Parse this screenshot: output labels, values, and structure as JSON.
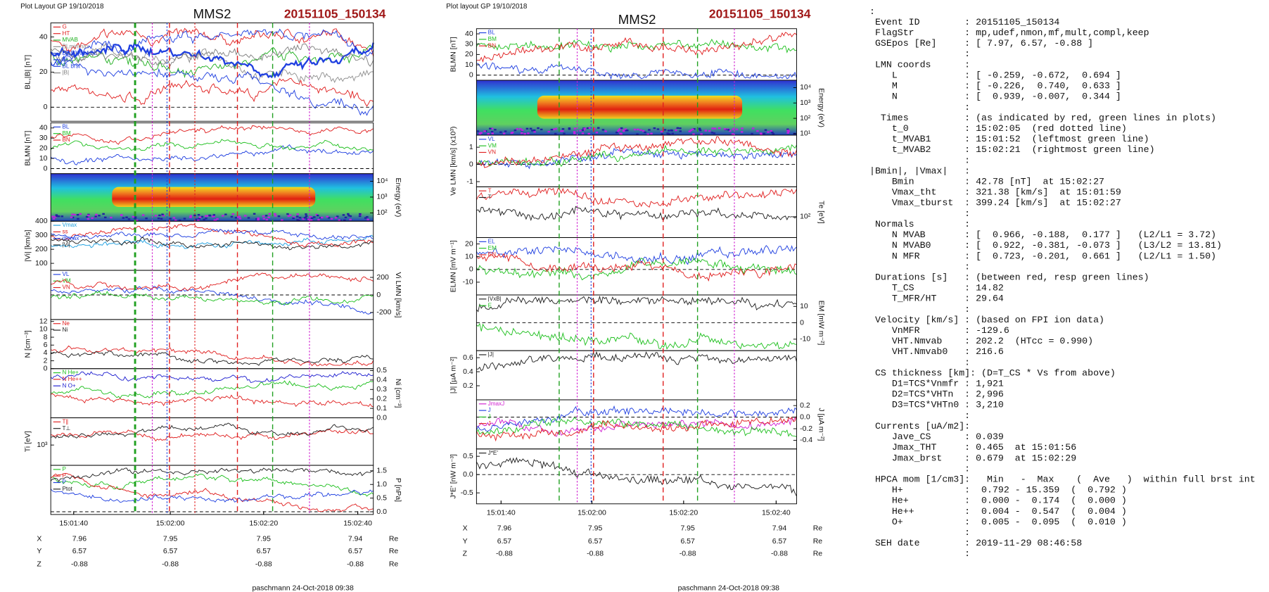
{
  "plots": [
    {
      "header": "Plot Layout GP 19/10/2018",
      "probe": "MMS2",
      "event": "20151105_150134",
      "footer": "paschmann 24-Oct-2018 09:38",
      "xticks": [
        "15:01:40",
        "15:02:00",
        "15:02:20",
        "15:02:40"
      ],
      "position_rows": [
        {
          "label": "X",
          "values": [
            7.96,
            7.95,
            7.95,
            7.94
          ],
          "unit": "Re"
        },
        {
          "label": "Y",
          "values": [
            6.57,
            6.57,
            6.57,
            6.57
          ],
          "unit": "Re"
        },
        {
          "label": "Z",
          "values": [
            -0.88,
            -0.88,
            -0.88,
            -0.88
          ],
          "unit": "Re"
        }
      ],
      "panels": [
        {
          "kind": "line",
          "axis": "left",
          "ylabel": "BL,|B| [nT]",
          "ylim": [
            -8,
            48
          ],
          "yticks": [
            0,
            20,
            40
          ],
          "legend": [
            {
              "name": "G",
              "color": "#e02020"
            },
            {
              "name": "HT",
              "color": "#e02020"
            },
            {
              "name": "MVAB",
              "color": "#20b020"
            },
            {
              "name": "BLminmax",
              "color": "#909090"
            },
            {
              "name": "BL 50% of BL",
              "color": "#2040e0"
            },
            {
              "name": "BL",
              "color": "#2040e0"
            },
            {
              "name": "BL brst",
              "color": "#2040e0"
            },
            {
              "name": "|B|",
              "color": "#808080"
            }
          ]
        },
        {
          "kind": "line",
          "axis": "left",
          "ylabel": "BLMN [nT]",
          "ylim": [
            -5,
            45
          ],
          "yticks": [
            0,
            10,
            20,
            30,
            40
          ],
          "legend": [
            {
              "name": "BL",
              "color": "#2040e0"
            },
            {
              "name": "BM",
              "color": "#20c020"
            },
            {
              "name": "BN",
              "color": "#e02020"
            }
          ]
        },
        {
          "kind": "spectrogram",
          "axis": "right",
          "ylabel": "Energy (eV)",
          "log": true,
          "ylim": [
            30,
            30000
          ],
          "yticks": [
            {
              "value": 100,
              "label": "10²"
            },
            {
              "value": 1000,
              "label": "10³"
            },
            {
              "value": 10000,
              "label": "10⁴"
            }
          ],
          "legend": []
        },
        {
          "kind": "line",
          "axis": "left",
          "ylabel": "|Vi| [km/s]",
          "ylim": [
            50,
            400
          ],
          "yticks": [
            100,
            200,
            300,
            400
          ],
          "legend": [
            {
              "name": "Vmax",
              "color": "#20a0e0"
            },
            {
              "name": "ss",
              "color": "#e02020"
            },
            {
              "name": "dvmax",
              "color": "#2040e0"
            },
            {
              "name": "|Vi|",
              "color": "#202020"
            }
          ]
        },
        {
          "kind": "line",
          "axis": "right",
          "ylabel": "Vi LMN [km/s]",
          "ylim": [
            -280,
            280
          ],
          "yticks": [
            -200,
            0,
            200
          ],
          "legend": [
            {
              "name": "VL",
              "color": "#2040e0"
            },
            {
              "name": "VM",
              "color": "#20c020"
            },
            {
              "name": "VN",
              "color": "#e02020"
            }
          ]
        },
        {
          "kind": "line",
          "axis": "left",
          "ylabel": "N [cm⁻³]",
          "ylim": [
            0,
            12.5
          ],
          "yticks": [
            0,
            2,
            4,
            6,
            8,
            10,
            12
          ],
          "legend": [
            {
              "name": "Ne",
              "color": "#e02020"
            },
            {
              "name": "Ni",
              "color": "#202020"
            }
          ]
        },
        {
          "kind": "line",
          "axis": "right",
          "ylabel": "Ni [cm⁻³]",
          "ylim": [
            0,
            0.52
          ],
          "yticks": [
            {
              "value": 0,
              "label": "0.0"
            },
            0.1,
            0.2,
            0.3,
            0.4,
            0.5
          ],
          "legend": [
            {
              "name": "N He+",
              "color": "#20c020"
            },
            {
              "name": "N He++",
              "color": "#e02020"
            },
            {
              "name": "N O+",
              "color": "#2020d0"
            }
          ]
        },
        {
          "kind": "line",
          "axis": "left",
          "ylabel": "Ti [eV]",
          "log": true,
          "ylim": [
            300,
            5000
          ],
          "yticks": [
            {
              "value": 1000,
              "label": "10³"
            }
          ],
          "legend": [
            {
              "name": "T∥",
              "color": "#e02020"
            },
            {
              "name": "T⊥",
              "color": "#202020"
            }
          ]
        },
        {
          "kind": "line",
          "axis": "right",
          "ylabel": "P [nPa]",
          "ylim": [
            -0.1,
            1.7
          ],
          "yticks": [
            {
              "value": 0,
              "label": "0.0"
            },
            0.5,
            {
              "value": 1,
              "label": "1.0"
            },
            1.5
          ],
          "legend": [
            {
              "name": "P",
              "color": "#20c020"
            },
            {
              "name": "P",
              "color": "#e02020"
            },
            {
              "name": "P",
              "color": "#2040e0"
            },
            {
              "name": "Ptot",
              "color": "#202020"
            }
          ]
        }
      ]
    },
    {
      "header": "Plot layout GP 19/10/2018",
      "probe": "MMS2",
      "event": "20151105_150134",
      "footer": "paschmann 24-Oct-2018 09:38",
      "xticks": [
        "15:01:40",
        "15:02:00",
        "15:02:20",
        "15:02:40"
      ],
      "position_rows": [
        {
          "label": "X",
          "values": [
            7.96,
            7.95,
            7.95,
            7.94
          ],
          "unit": "Re"
        },
        {
          "label": "Y",
          "values": [
            6.57,
            6.57,
            6.57,
            6.57
          ],
          "unit": "Re"
        },
        {
          "label": "Z",
          "values": [
            -0.88,
            -0.88,
            -0.88,
            -0.88
          ],
          "unit": "Re"
        }
      ],
      "panels": [
        {
          "kind": "line",
          "axis": "left",
          "ylabel": "BLMN [nT]",
          "ylim": [
            -5,
            45
          ],
          "yticks": [
            0,
            10,
            20,
            30,
            40
          ],
          "legend": [
            {
              "name": "BL",
              "color": "#2040e0"
            },
            {
              "name": "BM",
              "color": "#20c020"
            },
            {
              "name": "BN",
              "color": "#e02020"
            }
          ]
        },
        {
          "kind": "spectrogram",
          "axis": "right",
          "ylabel": "Energy (eV)",
          "log": true,
          "ylim": [
            8,
            30000
          ],
          "yticks": [
            {
              "value": 10,
              "label": "10¹"
            },
            {
              "value": 100,
              "label": "10²"
            },
            {
              "value": 1000,
              "label": "10³"
            },
            {
              "value": 10000,
              "label": "10⁴"
            }
          ],
          "legend": []
        },
        {
          "kind": "line",
          "axis": "left",
          "ylabel": "Ve LMN [km/s] (x10³)",
          "ylim": [
            -1.3,
            1.7
          ],
          "yticks": [
            -1,
            0,
            1
          ],
          "legend": [
            {
              "name": "VL",
              "color": "#2040e0"
            },
            {
              "name": "VM",
              "color": "#20c020"
            },
            {
              "name": "VN",
              "color": "#e02020"
            }
          ]
        },
        {
          "kind": "line",
          "axis": "right",
          "ylabel": "Te [eV]",
          "log": true,
          "ylim": [
            20,
            1000
          ],
          "yticks": [
            {
              "value": 100,
              "label": "10²"
            }
          ],
          "legend": [
            {
              "name": "T",
              "color": "#e02020"
            },
            {
              "name": "T",
              "color": "#202020"
            }
          ]
        },
        {
          "kind": "line",
          "axis": "left",
          "ylabel": "ELMN [mV m⁻¹]",
          "ylim": [
            -20,
            25
          ],
          "yticks": [
            -10,
            0,
            10,
            20
          ],
          "legend": [
            {
              "name": "EL",
              "color": "#2040e0"
            },
            {
              "name": "EM",
              "color": "#20c020"
            },
            {
              "name": "EN",
              "color": "#e02020"
            }
          ]
        },
        {
          "kind": "line",
          "axis": "right",
          "ylabel": "EM [mW m⁻²]",
          "ylim": [
            -17,
            17
          ],
          "yticks": [
            -10,
            0,
            10
          ],
          "legend": [
            {
              "name": "|VxB|",
              "color": "#202020"
            },
            {
              "name": "E",
              "color": "#20c020"
            }
          ]
        },
        {
          "kind": "line",
          "axis": "left",
          "ylabel": "|J| [µA m⁻²]",
          "ylim": [
            0,
            0.7
          ],
          "yticks": [
            0.2,
            0.4,
            0.6
          ],
          "legend": [
            {
              "name": "|J|",
              "color": "#202020"
            }
          ]
        },
        {
          "kind": "line",
          "axis": "right",
          "ylabel": "J [µA m⁻²]",
          "ylim": [
            -0.55,
            0.3
          ],
          "yticks": [
            -0.4,
            -0.2,
            {
              "value": 0,
              "label": "0.0"
            },
            0.2
          ],
          "legend": [
            {
              "name": "JmaxJ",
              "color": "#d020d0"
            },
            {
              "name": "J",
              "color": "#2040e0"
            },
            {
              "name": "J",
              "color": "#20c020"
            },
            {
              "name": "J",
              "color": "#e02020"
            }
          ]
        },
        {
          "kind": "line",
          "axis": "left",
          "ylabel": "J*E' [nW m⁻³]",
          "ylim": [
            -0.8,
            0.7
          ],
          "yticks": [
            -0.5,
            {
              "value": 0,
              "label": "0.0"
            },
            0.5
          ],
          "legend": [
            {
              "name": "J*E'",
              "color": "#202020"
            }
          ]
        }
      ]
    }
  ],
  "info": {
    "lines": [
      ":",
      " Event ID        : 20151105_150134",
      " FlagStr         : mp,udef,nmon,mf,mult,compl,keep",
      " GSEpos [Re]     : [ 7.97, 6.57, -0.88 ]",
      "                 :",
      " LMN coords      :",
      "    L            : [ -0.259, -0.672,  0.694 ]",
      "    M            : [ -0.226,  0.740,  0.633 ]",
      "    N            : [  0.939, -0.007,  0.344 ]",
      "                 :",
      "  Times          : (as indicated by red, green lines in plots)",
      "    t_0          : 15:02:05  (red dotted line)",
      "    t_MVAB1      : 15:01:52  (leftmost green line)",
      "    t_MVAB2      : 15:02:21  (rightmost green line)",
      "                 :",
      "|Bmin|, |Vmax|   :",
      "    Bmin         : 42.78 [nT]  at 15:02:27",
      "    Vmax_tht     : 321.38 [km/s]  at 15:01:59",
      "    Vmax_tburst  : 399.24 [km/s]  at 15:02:27",
      "                 :",
      " Normals         :",
      "    N MVAB       : [  0.966, -0.188,  0.177 ]   (L2/L1 = 3.72)",
      "    N MVAB0      : [  0.922, -0.381, -0.073 ]   (L3/L2 = 13.81)",
      "    N MFR        : [  0.723, -0.201,  0.661 ]   (L2/L1 = 1.50)",
      "                 :",
      " Durations [s]   : (between red, resp green lines)",
      "    T_CS         : 14.82",
      "    T_MFR/HT     : 29.64",
      "                 :",
      " Velocity [km/s] : (based on FPI ion data)",
      "    VnMFR        : -129.6",
      "    VHT.Nmvab    : 202.2  (HTcc = 0.990)",
      "    VHT.Nmvab0   : 216.6",
      "                 :",
      " CS thickness [km]: (D=T_CS * Vs from above)",
      "    D1=TCS*Vnmfr : 1,921",
      "    D2=TCS*VHTn  : 2,996",
      "    D3=TCS*VHTn0 : 3,210",
      "                 :",
      " Currents [uA/m2]:",
      "    Jave_CS      : 0.039",
      "    Jmax_THT     : 0.465  at 15:01:56",
      "    Jmax_brst    : 0.679  at 15:02:29",
      "                 :",
      " HPCA mom [1/cm3]:   Min   -  Max    (  Ave   )  within full brst int",
      "    H+           :  0.792 - 15.359  (  0.792 )",
      "    He+          :  0.000 -  0.174  (  0.000 )",
      "    He++         :  0.004 -  0.547  (  0.004 )",
      "    O+           :  0.005 -  0.095  (  0.010 )",
      "                 :",
      " SEH date        : 2019-11-29 08:46:58",
      "                 :"
    ]
  }
}
